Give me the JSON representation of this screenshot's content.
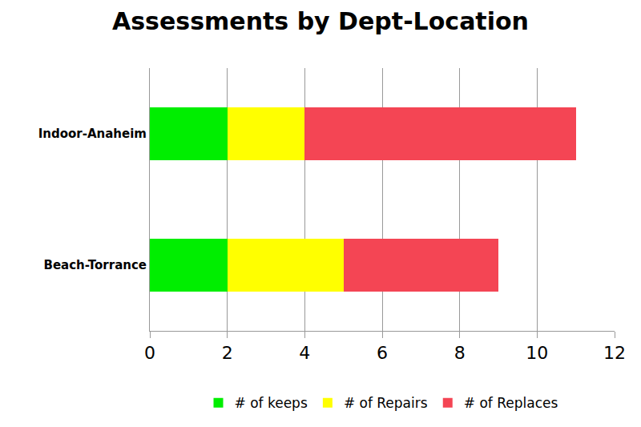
{
  "chart_data": {
    "type": "bar",
    "title": "Assessments by Dept-Location",
    "orientation": "horizontal",
    "stacked": true,
    "grid": true,
    "legend": "bottom",
    "categories": [
      "Indoor-Anaheim",
      "Beach-Torrance"
    ],
    "series": [
      {
        "name": "# of keeps",
        "color": "#00ee00",
        "values": [
          2,
          2
        ]
      },
      {
        "name": "# of Repairs",
        "color": "#ffff00",
        "values": [
          2,
          3
        ]
      },
      {
        "name": "# of Replaces",
        "color": "#f44554",
        "values": [
          7,
          4
        ]
      }
    ],
    "xlim": [
      0,
      12
    ],
    "xticks": [
      0,
      2,
      4,
      6,
      8,
      10,
      12
    ]
  }
}
